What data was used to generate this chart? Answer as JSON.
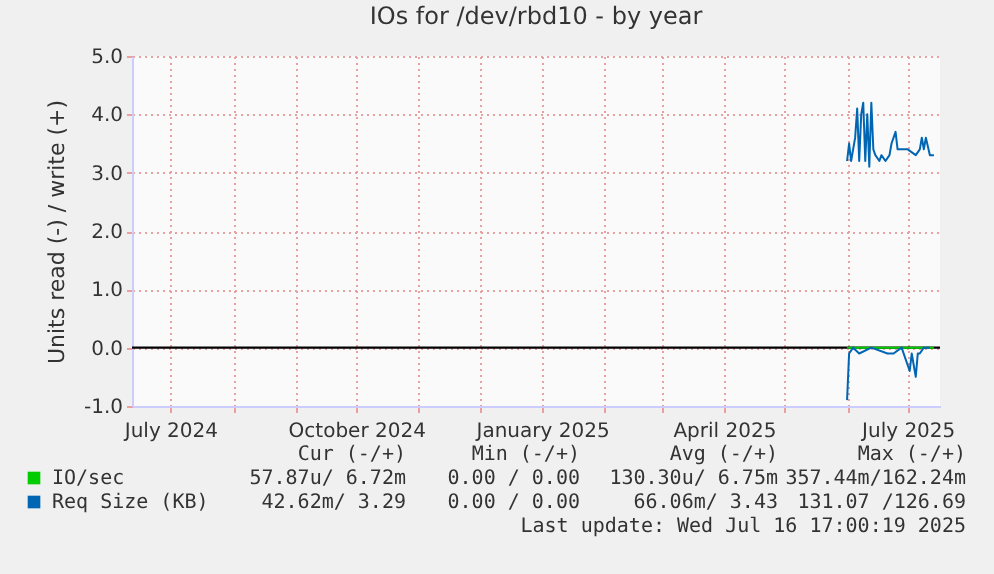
{
  "chart_data": {
    "type": "line",
    "title": "IOs for /dev/rbd10 - by year",
    "ylabel": "Units read (-) / write (+)",
    "xlim": [
      "2024-06-12",
      "2025-07-17"
    ],
    "ylim": [
      -1.0,
      5.0
    ],
    "yticks": [
      {
        "value": -1,
        "label": "-1.0"
      },
      {
        "value": 0,
        "label": "0.0"
      },
      {
        "value": 1,
        "label": "1.0"
      },
      {
        "value": 2,
        "label": "2.0"
      },
      {
        "value": 3,
        "label": "3.0"
      },
      {
        "value": 4,
        "label": "4.0"
      },
      {
        "value": 5,
        "label": "5.0"
      }
    ],
    "xticks": [
      {
        "value": "2024-07-01",
        "label": "July 2024"
      },
      {
        "value": "2024-08-01",
        "label": null
      },
      {
        "value": "2024-09-01",
        "label": null
      },
      {
        "value": "2024-10-01",
        "label": "October 2024"
      },
      {
        "value": "2024-11-01",
        "label": null
      },
      {
        "value": "2024-12-01",
        "label": null
      },
      {
        "value": "2025-01-01",
        "label": "January 2025"
      },
      {
        "value": "2025-02-01",
        "label": null
      },
      {
        "value": "2025-03-01",
        "label": null
      },
      {
        "value": "2025-04-01",
        "label": "April 2025"
      },
      {
        "value": "2025-05-01",
        "label": null
      },
      {
        "value": "2025-06-01",
        "label": null
      },
      {
        "value": "2025-07-01",
        "label": "July 2025"
      }
    ],
    "grid": true,
    "legend": "bottom",
    "ref_lines": [
      {
        "axis": "y",
        "value": 0,
        "color": "#000000"
      }
    ],
    "series": [
      {
        "name": "IO/sec",
        "color": "#00cc00",
        "x": [
          "2025-06-01",
          "2025-07-14"
        ],
        "values": [
          0.0,
          0.0
        ]
      },
      {
        "name": "Req Size (KB)",
        "color": "#0066b3",
        "x": [
          "2025-06-01",
          "2025-06-02",
          "2025-06-03",
          "2025-06-05",
          "2025-06-06",
          "2025-06-07",
          "2025-06-08",
          "2025-06-09",
          "2025-06-10",
          "2025-06-11",
          "2025-06-12",
          "2025-06-13",
          "2025-06-14",
          "2025-06-15",
          "2025-06-17",
          "2025-06-18",
          "2025-06-20",
          "2025-06-22",
          "2025-06-23",
          "2025-06-25",
          "2025-06-26",
          "2025-06-28",
          "2025-07-01",
          "2025-07-05",
          "2025-07-07",
          "2025-07-08",
          "2025-07-09",
          "2025-07-10",
          "2025-07-12",
          "2025-07-14"
        ],
        "values": [
          3.2,
          3.5,
          3.2,
          3.6,
          4.1,
          3.2,
          4.0,
          4.2,
          3.2,
          4.0,
          3.1,
          4.2,
          3.4,
          3.3,
          3.2,
          3.3,
          3.2,
          3.3,
          3.5,
          3.7,
          3.4,
          3.4,
          3.4,
          3.3,
          3.4,
          3.6,
          3.4,
          3.6,
          3.3,
          3.3
        ]
      },
      {
        "color": "#0066b3",
        "x": [
          "2025-06-01",
          "2025-06-02",
          "2025-06-04",
          "2025-06-07",
          "2025-06-13",
          "2025-06-21",
          "2025-06-24",
          "2025-06-28",
          "2025-07-02",
          "2025-07-03",
          "2025-07-05",
          "2025-07-06",
          "2025-07-07",
          "2025-07-09",
          "2025-07-12"
        ],
        "values": [
          -0.9,
          -0.1,
          0.0,
          -0.1,
          0.0,
          -0.1,
          -0.1,
          0.0,
          -0.4,
          -0.1,
          -0.5,
          -0.1,
          -0.1,
          0.0,
          0.0
        ]
      }
    ],
    "annotations": [
      "Cur (-/+)",
      "Min (-/+)",
      "Avg (-/+)",
      "Max (-/+)",
      "57.87u/ 6.72m",
      "0.00 / 0.00",
      "130.30u/ 6.75m",
      "357.44m/162.24m",
      "42.62m/ 3.29",
      "0.00 / 0.00",
      "66.06m/ 3.43",
      "131.07 /126.69",
      "Last update: Wed Jul 16 17:00:19 2025"
    ]
  }
}
